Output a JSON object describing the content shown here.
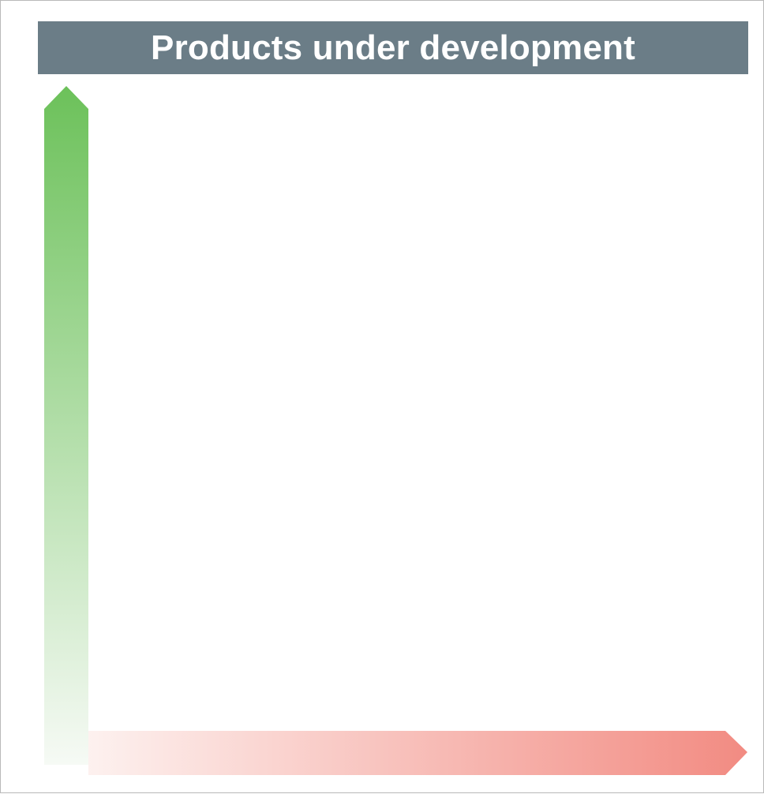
{
  "title": {
    "text": "Products under development"
  },
  "colors": {
    "title_bar": "#6b7d87",
    "title_text": "#ffffff",
    "frame_border": "#b9b9b9",
    "vertical_arrow_top": "#6cc15a",
    "vertical_arrow_bottom": "#f6faf5",
    "horizontal_arrow_left": "#fdf1ef",
    "horizontal_arrow_right": "#f28b82"
  },
  "arrows": {
    "vertical": {
      "direction": "up"
    },
    "horizontal": {
      "direction": "right"
    }
  }
}
